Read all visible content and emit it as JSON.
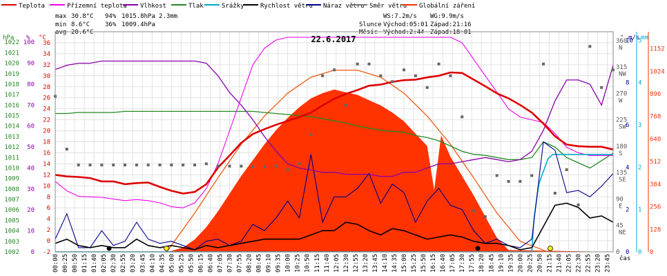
{
  "chart_data": {
    "type": "line",
    "title": "22.6.2017",
    "xlabel": "čas",
    "legend": [
      {
        "label": "Teplota",
        "color": "#dd0000"
      },
      {
        "label": "Přízemní teplota",
        "color": "#ee00ee"
      },
      {
        "label": "Vlhkost",
        "color": "#8800aa"
      },
      {
        "label": "Tlak",
        "color": "#228822"
      },
      {
        "label": "Srážky",
        "color": "#00aacc"
      },
      {
        "label": "Rychlost větru",
        "color": "#000000"
      },
      {
        "label": "Náraz větru",
        "color": "#000088"
      },
      {
        "label": "Směr větru",
        "color": "#666666"
      },
      {
        "label": "Globální záření",
        "color": "#ee3300"
      }
    ],
    "stats": {
      "max_label": "max",
      "max_temp": "30.8°C",
      "max_hum": "94%",
      "max_press": "1015.8hPa",
      "rain_total": "2.3mm",
      "min_label": "min",
      "min_temp": "8.6°C",
      "min_hum": "36%",
      "min_press": "1009.4hPa",
      "avg_label": "avg",
      "avg_temp": "20.6°C"
    },
    "info": {
      "ws": "WS:7.2m/s",
      "wg": "WG:9.9m/s",
      "sun_label": "Slunce",
      "sun_rise": "Východ:05:01",
      "sun_set": "Západ:21:16",
      "moon_label": "Měsíc",
      "moon_rise": "Východ:2:44",
      "moon_set": "Západ:18:01"
    },
    "axes": {
      "hpa_unit": "hPa",
      "hum_unit": "%",
      "temp_unit": "°C",
      "hpa_ticks": [
        "1022",
        "1021",
        "1020",
        "1019",
        "1018",
        "1017",
        "1016",
        "1015",
        "1014",
        "1013",
        "1012",
        "1011",
        "1010",
        "1009",
        "1008",
        "1007",
        "1006",
        "1005",
        "1004",
        "1003",
        "1002"
      ],
      "hum_ticks": [
        "100",
        "90",
        "80",
        "70",
        "60",
        "50",
        "40",
        "30",
        "20",
        "10",
        "0"
      ],
      "temp_ticks": [
        "36",
        "34",
        "32",
        "30",
        "28",
        "26",
        "24",
        "22",
        "20",
        "18",
        "16",
        "14",
        "12",
        "10",
        "8",
        "6",
        "4",
        "2",
        "0",
        "-2"
      ],
      "dir_unit": "°",
      "ms_unit": "m/s",
      "mm_unit": "mm",
      "dir_ticks": [
        {
          "v": 360,
          "t": "360",
          "c": "N"
        },
        {
          "v": 315,
          "t": "315",
          "c": "NW"
        },
        {
          "v": 270,
          "t": "270",
          "c": "W"
        },
        {
          "v": 225,
          "t": "225",
          "c": "SW"
        },
        {
          "v": 180,
          "t": "180",
          "c": "S"
        },
        {
          "v": 135,
          "t": "135",
          "c": "SE"
        },
        {
          "v": 90,
          "t": "90",
          "c": "E"
        },
        {
          "v": 45,
          "t": "45",
          "c": "NE"
        },
        {
          "v": 0,
          "t": "0",
          "c": ""
        }
      ],
      "ms_ticks": [
        "10",
        "8",
        "6",
        "4",
        "2",
        "0"
      ],
      "mm_ticks": [
        "5",
        "4",
        "3",
        "2",
        "1",
        "0"
      ],
      "rad_ticks": [
        "1152",
        "1024",
        "896",
        "768",
        "640",
        "512",
        "384",
        "256",
        "128",
        "0"
      ],
      "time_labels": [
        "00:00",
        "00:25",
        "00:50",
        "01:15",
        "01:40",
        "02:05",
        "02:30",
        "02:55",
        "03:20",
        "03:45",
        "04:10",
        "04:35",
        "05:00",
        "05:25",
        "05:50",
        "06:15",
        "06:40",
        "07:05",
        "07:30",
        "07:55",
        "08:20",
        "08:45",
        "09:10",
        "09:35",
        "10:00",
        "10:25",
        "10:50",
        "11:15",
        "11:40",
        "12:05",
        "12:30",
        "12:55",
        "13:20",
        "13:45",
        "14:10",
        "14:35",
        "15:00",
        "15:25",
        "15:50",
        "16:15",
        "16:40",
        "17:05",
        "17:30",
        "17:55",
        "18:20",
        "18:45",
        "19:10",
        "19:35",
        "20:00",
        "20:25",
        "20:50",
        "21:15",
        "21:40",
        "22:05",
        "22:30",
        "22:55",
        "23:20",
        "23:45"
      ]
    },
    "ranges": {
      "temp": [
        -2,
        38
      ],
      "hum": [
        0,
        105
      ],
      "press": [
        1002,
        1023
      ],
      "wind_ms": [
        0,
        10.4
      ],
      "rain_mm": [
        0,
        5.2
      ],
      "dir_deg": [
        0,
        375
      ],
      "rad_wm2": [
        0,
        1248
      ],
      "hours": [
        0,
        24
      ]
    },
    "series": {
      "temperature": {
        "name": "Teplota",
        "x": [
          0,
          0.5,
          1,
          1.5,
          2,
          2.5,
          3,
          3.5,
          4,
          4.5,
          5,
          5.5,
          6,
          6.5,
          7,
          7.5,
          8,
          8.5,
          9,
          9.5,
          10,
          10.5,
          11,
          11.5,
          12,
          12.5,
          13,
          13.5,
          14,
          14.5,
          15,
          15.5,
          16,
          16.5,
          17,
          17.5,
          18,
          18.5,
          19,
          19.5,
          20,
          20.5,
          21,
          21.5,
          22,
          22.5,
          23,
          23.5,
          24
        ],
        "y": [
          12,
          11.7,
          11.6,
          11.4,
          10.8,
          10.8,
          10.3,
          10.5,
          10.6,
          9.8,
          9.1,
          8.6,
          8.9,
          10.3,
          13.3,
          15.5,
          17.8,
          19.4,
          20.3,
          21.1,
          21.8,
          22.5,
          23.3,
          24.6,
          25.8,
          26.7,
          27.4,
          28.2,
          28.4,
          28.9,
          29.2,
          29.3,
          29.7,
          30.0,
          30.6,
          30.5,
          29.3,
          28.1,
          26.8,
          25.9,
          24.7,
          23.3,
          21.3,
          19.0,
          17.5,
          17.2,
          17.1,
          17.1,
          16.6
        ]
      },
      "ground_temp": {
        "name": "Přízemní teplota",
        "x": [
          0,
          0.5,
          1,
          1.5,
          2,
          2.5,
          3,
          3.5,
          4,
          4.5,
          5,
          5.5,
          6,
          6.5,
          7,
          7.5,
          8,
          8.5,
          9,
          9.5,
          10,
          10.5,
          11,
          11.5,
          12,
          12.5,
          13,
          13.5,
          14,
          14.5,
          15,
          15.5,
          16,
          16.5,
          17,
          17.5,
          18,
          18.5,
          19,
          19.5,
          20,
          20.5,
          21,
          21.5,
          22,
          22.5,
          23,
          23.5,
          24
        ],
        "y": [
          10.8,
          9.1,
          8.1,
          8.0,
          7.9,
          7.6,
          7.3,
          7.5,
          7.3,
          6.9,
          6.2,
          6.0,
          6.9,
          9.5,
          14.0,
          20.0,
          26.0,
          32.0,
          35.0,
          36.5,
          37.0,
          37.0,
          37.0,
          37.0,
          37.0,
          37.0,
          37.0,
          37.0,
          37.0,
          37.0,
          37.0,
          37.0,
          37.0,
          37.0,
          37.0,
          36.0,
          33.0,
          30.0,
          27.0,
          24.0,
          22.5,
          22.0,
          21.5,
          19.5,
          17.0,
          16.0,
          15.5,
          15.5,
          15.5
        ]
      },
      "humidity": {
        "name": "Vlhkost",
        "x": [
          0,
          0.5,
          1,
          1.5,
          2,
          2.5,
          3,
          3.5,
          4,
          4.5,
          5,
          5.5,
          6,
          6.5,
          7,
          7.5,
          8,
          8.5,
          9,
          9.5,
          10,
          10.5,
          11,
          11.5,
          12,
          12.5,
          13,
          13.5,
          14,
          14.5,
          15,
          15.5,
          16,
          16.5,
          17,
          17.5,
          18,
          18.5,
          19,
          19.5,
          20,
          20.5,
          21,
          21.5,
          22,
          22.5,
          23,
          23.5,
          24
        ],
        "y": [
          87,
          89,
          90,
          90,
          91,
          91,
          91,
          91,
          91,
          91,
          91,
          91,
          91,
          90,
          84,
          76,
          70,
          63,
          55,
          48,
          42,
          40,
          39,
          38,
          38,
          37,
          37,
          37,
          36,
          36,
          38,
          38,
          40,
          42,
          42,
          43,
          44,
          45,
          44,
          43,
          44,
          48,
          58,
          72,
          82,
          82,
          80,
          70,
          89
        ]
      },
      "pressure": {
        "name": "Tlak",
        "x": [
          0,
          0.5,
          1,
          1.5,
          2,
          2.5,
          3,
          3.5,
          4,
          4.5,
          5,
          5.5,
          6,
          6.5,
          7,
          7.5,
          8,
          8.5,
          9,
          9.5,
          10,
          10.5,
          11,
          11.5,
          12,
          12.5,
          13,
          13.5,
          14,
          14.5,
          15,
          15.5,
          16,
          16.5,
          17,
          17.5,
          18,
          18.5,
          19,
          19.5,
          20,
          20.5,
          21,
          21.5,
          22,
          22.5,
          23,
          23.5,
          24
        ],
        "y": [
          1015.2,
          1015.2,
          1015.3,
          1015.3,
          1015.3,
          1015.3,
          1015.4,
          1015.4,
          1015.4,
          1015.4,
          1015.4,
          1015.4,
          1015.4,
          1015.4,
          1015.4,
          1015.4,
          1015.4,
          1015.4,
          1015.3,
          1015.2,
          1015.1,
          1015.0,
          1014.9,
          1014.7,
          1014.5,
          1014.3,
          1014.0,
          1013.8,
          1013.6,
          1013.5,
          1013.4,
          1013.1,
          1012.9,
          1012.6,
          1012.1,
          1011.6,
          1011.3,
          1011.2,
          1011.0,
          1010.8,
          1010.8,
          1011.0,
          1012.5,
          1012.0,
          1011.0,
          1010.5,
          1010.0,
          1010.7,
          1011.4
        ]
      },
      "rain": {
        "name": "Srážky",
        "x": [
          0,
          20.5,
          20.6,
          20.8,
          21.0,
          21.2,
          21.4,
          21.6,
          22,
          24
        ],
        "y": [
          0,
          0,
          0.8,
          1.6,
          1.9,
          2.2,
          2.3,
          2.3,
          2.3,
          2.3
        ]
      },
      "wind_speed": {
        "name": "Rychlost větru",
        "x": [
          0,
          0.5,
          1,
          1.5,
          2,
          2.5,
          3,
          3.5,
          4,
          4.5,
          5,
          5.5,
          6,
          6.5,
          7,
          7.5,
          8,
          8.5,
          9,
          9.5,
          10,
          10.5,
          11,
          11.5,
          12,
          12.5,
          13,
          13.5,
          14,
          14.5,
          15,
          15.5,
          16,
          16.5,
          17,
          17.5,
          18,
          18.5,
          19,
          19.5,
          20,
          20.5,
          21,
          21.5,
          22,
          22.5,
          23,
          23.5,
          24
        ],
        "y": [
          0.4,
          0.6,
          0.3,
          0.2,
          0.3,
          0.2,
          0.2,
          0.6,
          0.3,
          0.2,
          0.3,
          0.2,
          0.1,
          0.3,
          0.2,
          0.3,
          0.4,
          0.5,
          0.6,
          0.6,
          0.6,
          0.6,
          0.8,
          1.0,
          1.0,
          1.4,
          1.3,
          1.0,
          0.8,
          1.1,
          1.0,
          0.8,
          0.6,
          0.7,
          0.8,
          0.7,
          0.5,
          0.4,
          0.4,
          0.3,
          0.1,
          0.2,
          1.2,
          2.2,
          2.3,
          2.1,
          1.6,
          1.7,
          1.4
        ]
      },
      "wind_gust": {
        "name": "Náraz větru",
        "x": [
          0,
          0.5,
          1,
          1.5,
          2,
          2.5,
          3,
          3.5,
          4,
          4.5,
          5,
          5.5,
          6,
          6.5,
          7,
          7.5,
          8,
          8.5,
          9,
          9.5,
          10,
          10.5,
          11,
          11.5,
          12,
          12.5,
          13,
          13.5,
          14,
          14.5,
          15,
          15.5,
          16,
          16.5,
          17,
          17.5,
          18,
          18.5,
          19,
          19.5,
          20,
          20.5,
          21,
          21.5,
          22,
          22.5,
          23,
          23.5,
          24
        ],
        "y": [
          0.6,
          1.8,
          0.2,
          0.2,
          1.0,
          0.3,
          0.5,
          1.4,
          0.6,
          0.4,
          0.5,
          0.3,
          0.1,
          0.5,
          0.6,
          0.3,
          0.5,
          1.3,
          1.0,
          1.6,
          2.4,
          1.6,
          4.6,
          1.4,
          2.6,
          2.6,
          3.0,
          3.7,
          2.3,
          3.2,
          2.8,
          1.4,
          2.4,
          3.0,
          2.2,
          2.0,
          1.0,
          0.4,
          0.6,
          0.3,
          0.2,
          0.6,
          5.2,
          4.8,
          2.8,
          2.9,
          2.6,
          3.1,
          3.7
        ]
      },
      "wind_dir": {
        "name": "Směr větru",
        "x": [
          0,
          0.5,
          1,
          1.5,
          2,
          2.5,
          3,
          3.5,
          4,
          4.5,
          5,
          5.5,
          6,
          6.5,
          7,
          7.5,
          8,
          8.5,
          9,
          9.5,
          10,
          10.5,
          11,
          11.5,
          12,
          12.5,
          13,
          13.5,
          14,
          14.5,
          15,
          15.5,
          16,
          16.5,
          17,
          17.5,
          18,
          18.5,
          19,
          19.5,
          20,
          20.5,
          21,
          21.5,
          22,
          22.5,
          23,
          23.5,
          24
        ],
        "y": [
          265,
          175,
          148,
          148,
          148,
          148,
          148,
          148,
          148,
          148,
          148,
          148,
          148,
          150,
          146,
          146,
          146,
          145,
          145,
          146,
          140,
          150,
          200,
          300,
          310,
          250,
          320,
          320,
          300,
          290,
          310,
          300,
          280,
          320,
          300,
          230,
          70,
          60,
          130,
          120,
          120,
          130,
          320,
          100,
          140,
          80,
          350,
          280,
          310
        ]
      },
      "radiation": {
        "name": "Globální záření",
        "x": [
          0,
          4.5,
          5.0,
          5.5,
          6.0,
          6.5,
          7.0,
          7.5,
          8.0,
          8.5,
          9.0,
          9.5,
          10.0,
          10.5,
          11.0,
          11.5,
          12.0,
          12.5,
          13.0,
          13.5,
          14.0,
          14.5,
          15.0,
          15.5,
          16.0,
          16.3,
          16.6,
          17.0,
          17.5,
          18.0,
          18.5,
          19.0,
          19.5,
          24
        ],
        "y": [
          0,
          0,
          5,
          25,
          70,
          140,
          230,
          330,
          430,
          520,
          610,
          690,
          760,
          820,
          870,
          900,
          920,
          905,
          890,
          860,
          830,
          790,
          740,
          670,
          600,
          350,
          660,
          540,
          430,
          320,
          200,
          80,
          10,
          0
        ]
      },
      "clear_sky_radiation": {
        "name": "Globální záření",
        "x": [
          4.8,
          6,
          7,
          8,
          9,
          10,
          11,
          12,
          13,
          14,
          15,
          16,
          17,
          18,
          19,
          20,
          21.2
        ],
        "y": [
          0,
          220,
          420,
          610,
          770,
          900,
          990,
          1030,
          1030,
          990,
          900,
          770,
          610,
          420,
          220,
          60,
          0
        ]
      }
    }
  }
}
